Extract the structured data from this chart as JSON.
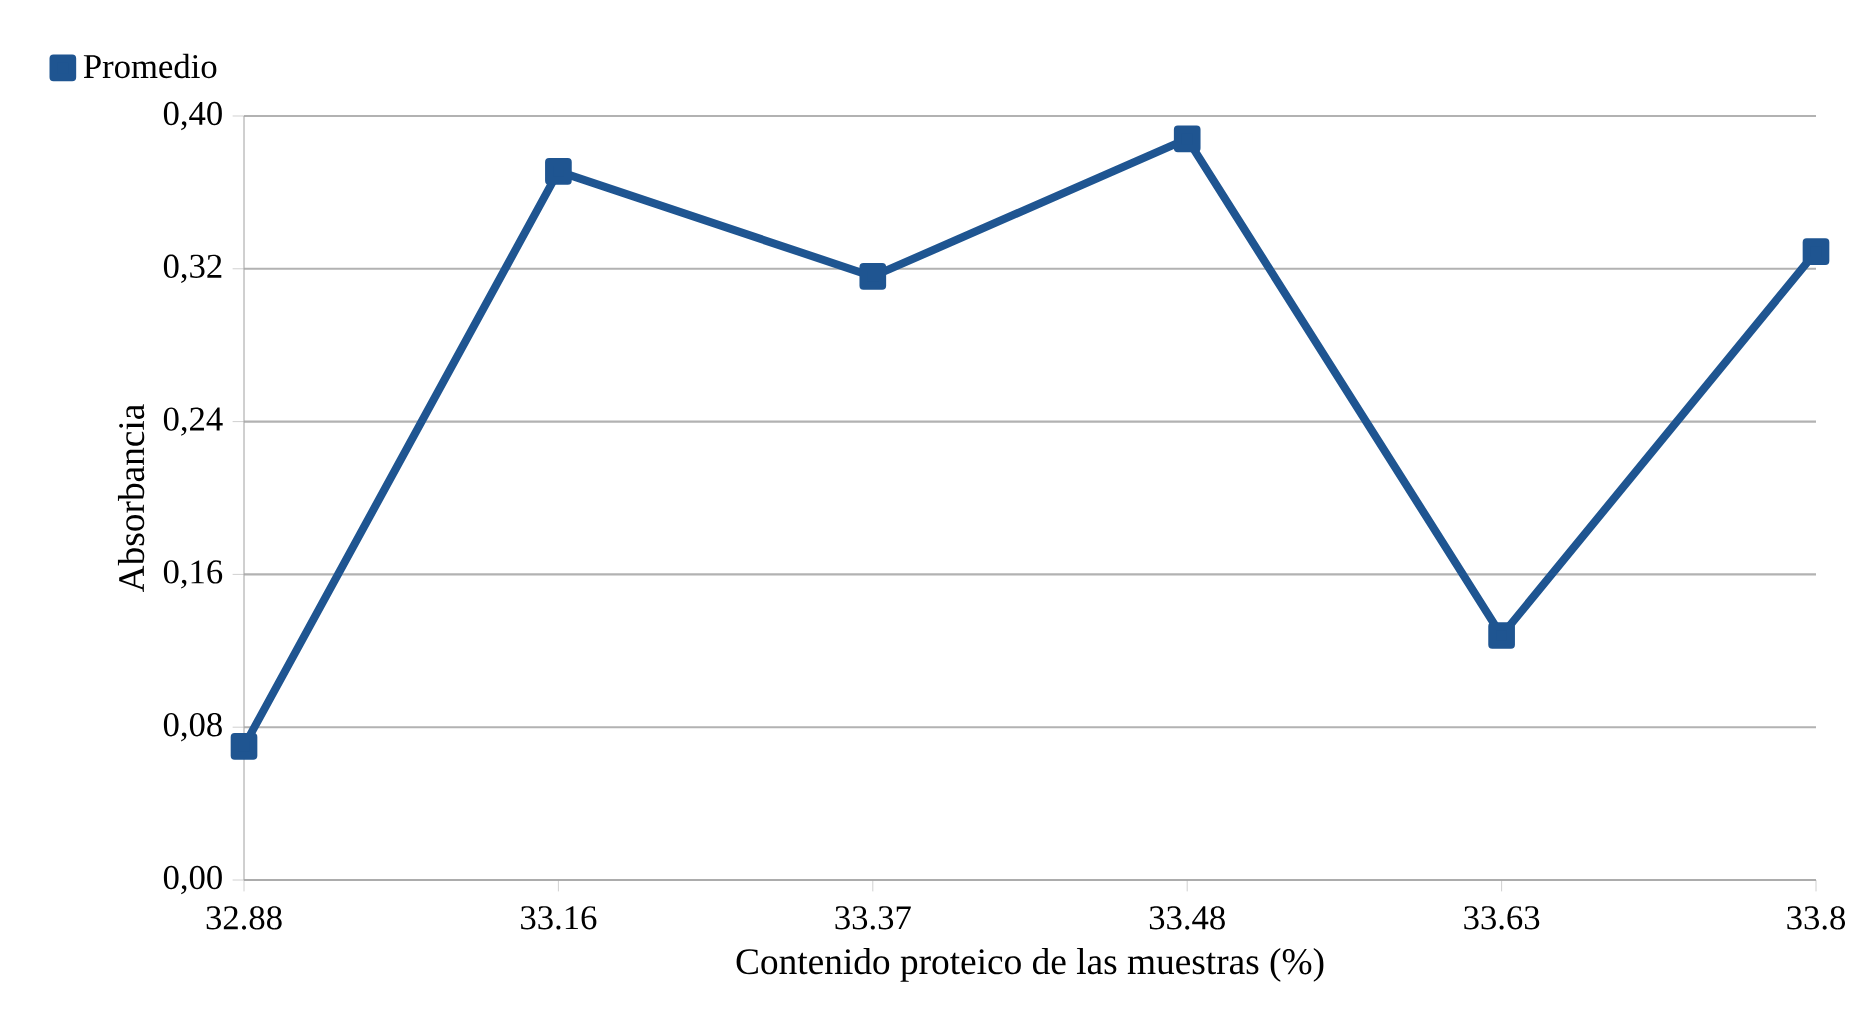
{
  "chart_data": {
    "type": "line",
    "xlabel": "Contenido proteico de las muestras (%)",
    "ylabel": "Absorbancia",
    "categories": [
      "32.88",
      "33.16",
      "33.37",
      "33.48",
      "33.63",
      "33.8"
    ],
    "series": [
      {
        "name": "Promedio",
        "color": "#1f5591",
        "values": [
          0.07,
          0.371,
          0.316,
          0.388,
          0.128,
          0.329
        ]
      }
    ],
    "ylim": [
      0,
      0.4
    ],
    "yticks": [
      {
        "value": 0,
        "label": "0,00"
      },
      {
        "value": 0.08,
        "label": "0,08"
      },
      {
        "value": 0.16,
        "label": "0,16"
      },
      {
        "value": 0.24,
        "label": "0,24"
      },
      {
        "value": 0.32,
        "label": "0,32"
      },
      {
        "value": 0.4,
        "label": "0,40"
      }
    ],
    "grid": "y",
    "legend": "top left",
    "marker": "square",
    "line_style": "solid"
  }
}
